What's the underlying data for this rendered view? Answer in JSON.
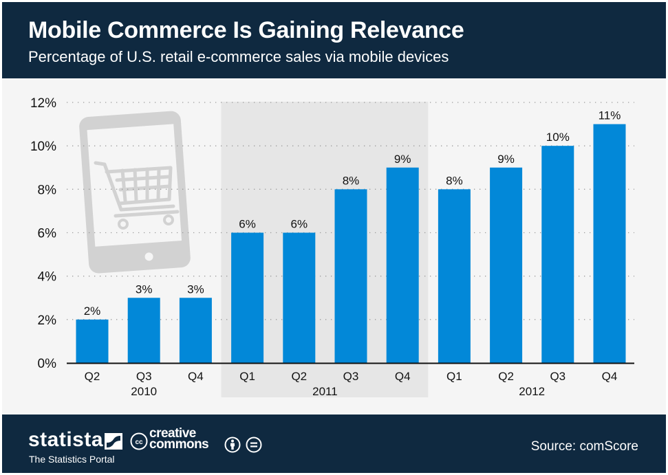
{
  "header": {
    "title": "Mobile Commerce Is Gaining Relevance",
    "subtitle": "Percentage of U.S. retail e-commerce sales via mobile devices"
  },
  "chart_data": {
    "type": "bar",
    "title": "Mobile Commerce Is Gaining Relevance",
    "subtitle": "Percentage of U.S. retail e-commerce sales via mobile devices",
    "xlabel": "",
    "ylabel": "",
    "categories": [
      "Q2",
      "Q3",
      "Q4",
      "Q1",
      "Q2",
      "Q3",
      "Q4",
      "Q1",
      "Q2",
      "Q3",
      "Q4"
    ],
    "years": [
      {
        "label": "2010",
        "start": 0,
        "end": 2,
        "highlighted": false
      },
      {
        "label": "2011",
        "start": 3,
        "end": 6,
        "highlighted": true
      },
      {
        "label": "2012",
        "start": 7,
        "end": 10,
        "highlighted": false
      }
    ],
    "values": [
      2,
      3,
      3,
      6,
      6,
      8,
      9,
      8,
      9,
      10,
      11
    ],
    "value_labels": [
      "2%",
      "3%",
      "3%",
      "6%",
      "6%",
      "8%",
      "9%",
      "8%",
      "9%",
      "10%",
      "11%"
    ],
    "ylim": [
      0,
      12
    ],
    "yticks": [
      0,
      2,
      4,
      6,
      8,
      10,
      12
    ],
    "ytick_labels": [
      "0%",
      "2%",
      "4%",
      "6%",
      "8%",
      "10%",
      "12%"
    ],
    "grid": true,
    "legend": "none",
    "bar_color": "#0288d8",
    "highlight_band_color": "#e6e6e6",
    "decoration": "tablet-shopping-cart-icon"
  },
  "footer": {
    "brand": "statista",
    "tagline": "The Statistics Portal",
    "license_line1": "creative",
    "license_line2": "commons",
    "source": "Source: comScore"
  }
}
